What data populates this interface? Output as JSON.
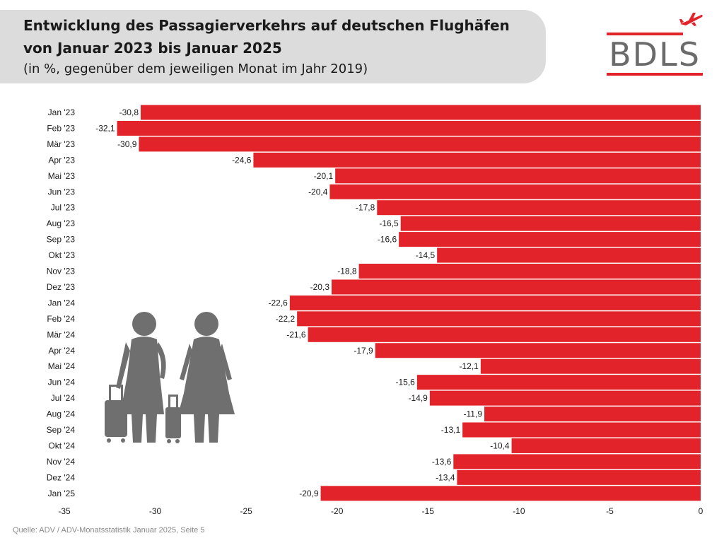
{
  "header": {
    "title_line1": "Entwicklung des Passagierverkehrs auf deutschen Flughäfen",
    "title_line2": "von Januar 2023 bis Januar 2025",
    "subtitle": "(in %, gegenüber dem jeweiligen Monat im Jahr 2019)"
  },
  "logo": {
    "text": "BDLS",
    "icon": "airplane-icon"
  },
  "footer": {
    "source": "Quelle: ADV / ADV-Monatsstatistik Januar 2025, Seite 5"
  },
  "illustration": {
    "icon": "travellers-with-suitcases-icon"
  },
  "colors": {
    "bar": "#e3232a",
    "header_bg": "#dcdcdc",
    "logo_gray": "#6b6b6b"
  },
  "chart_data": {
    "type": "bar",
    "orientation": "horizontal",
    "categories": [
      "Jan '23",
      "Feb '23",
      "Mär '23",
      "Apr '23",
      "Mai '23",
      "Jun '23",
      "Jul '23",
      "Aug '23",
      "Sep '23",
      "Okt '23",
      "Nov '23",
      "Dez '23",
      "Jan '24",
      "Feb '24",
      "Mär '24",
      "Apr '24",
      "Mai '24",
      "Jun '24",
      "Jul '24",
      "Aug '24",
      "Sep '24",
      "Okt '24",
      "Nov '24",
      "Dez '24",
      "Jan '25"
    ],
    "values": [
      -30.8,
      -32.1,
      -30.9,
      -24.6,
      -20.1,
      -20.4,
      -17.8,
      -16.5,
      -16.6,
      -14.5,
      -18.8,
      -20.3,
      -22.6,
      -22.2,
      -21.6,
      -17.9,
      -12.1,
      -15.6,
      -14.9,
      -11.9,
      -13.1,
      -10.4,
      -13.6,
      -13.4,
      -20.9
    ],
    "value_labels": [
      "-30,8",
      "-32,1",
      "-30,9",
      "-24,6",
      "-20,1",
      "-20,4",
      "-17,8",
      "-16,5",
      "-16,6",
      "-14,5",
      "-18,8",
      "-20,3",
      "-22,6",
      "-22,2",
      "-21,6",
      "-17,9",
      "-12,1",
      "-15,6",
      "-14,9",
      "-11,9",
      "-13,1",
      "-10,4",
      "-13,6",
      "-13,4",
      "-20,9"
    ],
    "xlim": [
      -35,
      0
    ],
    "xticks": [
      -35,
      -30,
      -25,
      -20,
      -15,
      -10,
      -5,
      0
    ],
    "xtick_labels": [
      "-35",
      "-30",
      "-25",
      "-20",
      "-15",
      "-10",
      "-5",
      "0"
    ],
    "grid": false,
    "legend": "none"
  }
}
